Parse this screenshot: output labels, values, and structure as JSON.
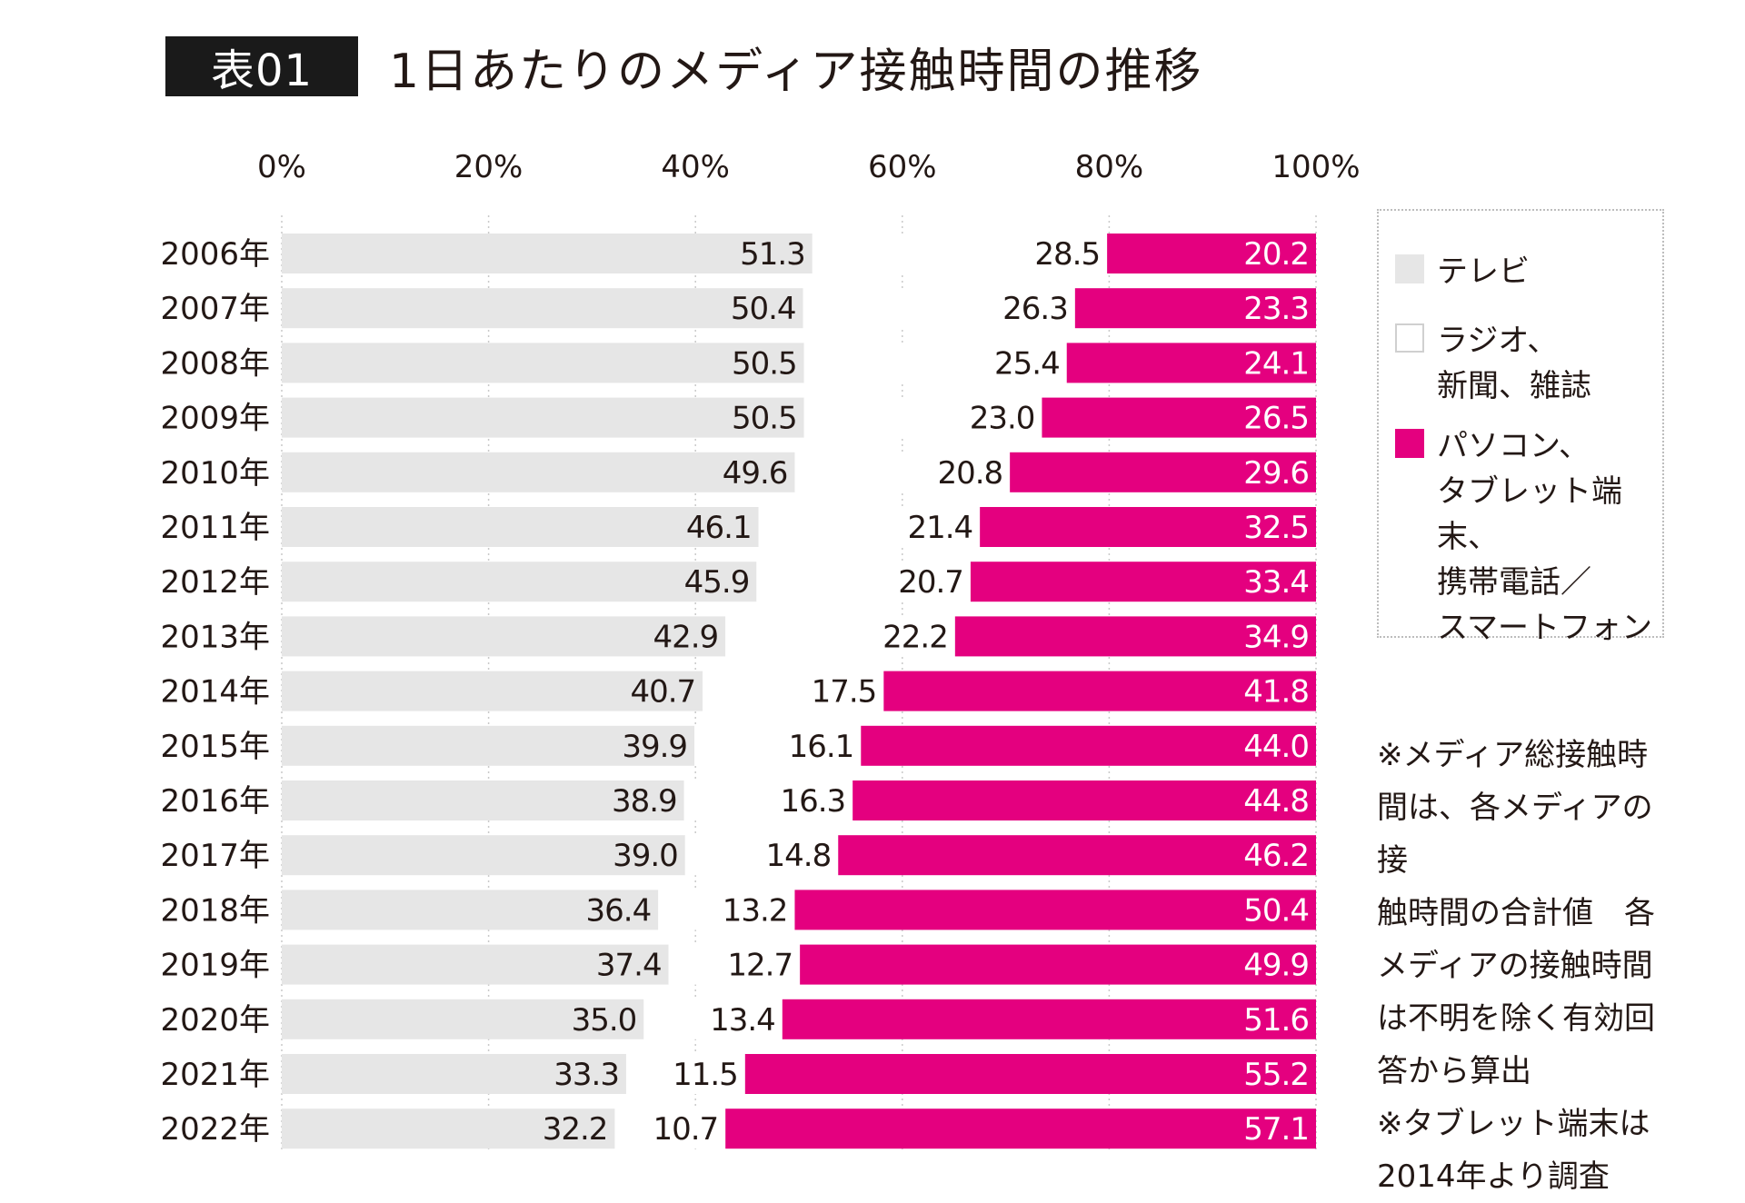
{
  "header": {
    "badge": "表01",
    "title": "1日あたりのメディア接触時間の推移"
  },
  "chart_data": {
    "type": "bar",
    "orientation": "horizontal",
    "stacked": true,
    "percent_stacked": true,
    "xlim": [
      0,
      100
    ],
    "x_ticks": [
      "0%",
      "20%",
      "40%",
      "60%",
      "80%",
      "100%"
    ],
    "grid": true,
    "legend_position": "right",
    "categories": [
      "2006年",
      "2007年",
      "2008年",
      "2009年",
      "2010年",
      "2011年",
      "2012年",
      "2013年",
      "2014年",
      "2015年",
      "2016年",
      "2017年",
      "2018年",
      "2019年",
      "2020年",
      "2021年",
      "2022年"
    ],
    "series": [
      {
        "name": "テレビ",
        "color": "#e6e6e6",
        "values": [
          51.3,
          50.4,
          50.5,
          50.5,
          49.6,
          46.1,
          45.9,
          42.9,
          40.7,
          39.9,
          38.9,
          39.0,
          36.4,
          37.4,
          35.0,
          33.3,
          32.2
        ],
        "labels": [
          "51.3",
          "50.4",
          "50.5",
          "50.5",
          "49.6",
          "46.1",
          "45.9",
          "42.9",
          "40.7",
          "39.9",
          "38.9",
          "39.0",
          "36.4",
          "37.4",
          "35.0",
          "33.3",
          "32.2"
        ]
      },
      {
        "name": "ラジオ、\n新聞、雑誌",
        "color": "#ffffff",
        "values": [
          28.5,
          26.3,
          25.4,
          23.0,
          20.8,
          21.4,
          20.7,
          22.2,
          17.5,
          16.1,
          16.3,
          14.8,
          13.2,
          12.7,
          13.4,
          11.5,
          10.7
        ],
        "labels": [
          "28.5",
          "26.3",
          "25.4",
          "23.0",
          "20.8",
          "21.4",
          "20.7",
          "22.2",
          "17.5",
          "16.1",
          "16.3",
          "14.8",
          "13.2",
          "12.7",
          "13.4",
          "11.5",
          "10.7"
        ]
      },
      {
        "name": "パソコン、\nタブレット端末、\n携帯電話／\nスマートフォン",
        "color": "#e4007f",
        "values": [
          20.2,
          23.3,
          24.1,
          26.5,
          29.6,
          32.5,
          33.4,
          34.9,
          41.8,
          44.0,
          44.8,
          46.2,
          50.4,
          49.9,
          51.6,
          55.2,
          57.1
        ],
        "labels": [
          "20.2",
          "23.3",
          "24.1",
          "26.5",
          "29.6",
          "32.5",
          "33.4",
          "34.9",
          "41.8",
          "44.0",
          "44.8",
          "46.2",
          "50.4",
          "49.9",
          "51.6",
          "55.2",
          "57.1"
        ]
      }
    ]
  },
  "note": "※メディア総接触時\n間は、各メディアの接\n触時間の合計値　各\nメディアの接触時間\nは不明を除く有効回\n答から算出\n※タブレット端末は\n2014年より調査"
}
